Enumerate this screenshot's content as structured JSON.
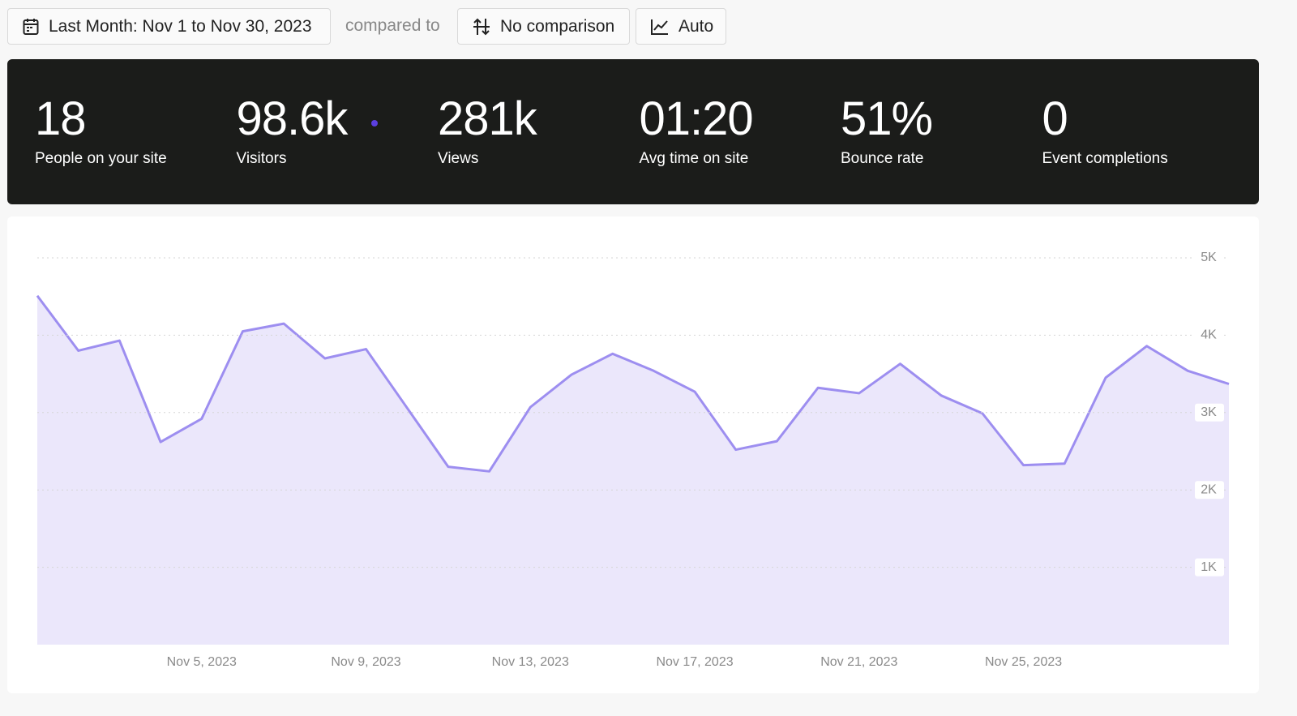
{
  "toolbar": {
    "date_range": "Last Month: Nov 1 to Nov 30, 2023",
    "compared_to": "compared to",
    "comparison": "No comparison",
    "interval": "Auto"
  },
  "stats": [
    {
      "value": "18",
      "label": "People on your site"
    },
    {
      "value": "98.6k",
      "label": "Visitors"
    },
    {
      "value": "281k",
      "label": "Views"
    },
    {
      "value": "01:20",
      "label": "Avg time on site"
    },
    {
      "value": "51%",
      "label": "Bounce rate"
    },
    {
      "value": "0",
      "label": "Event completions"
    }
  ],
  "chart_data": {
    "type": "area",
    "categories": [
      null,
      null,
      null,
      null,
      "Nov 5, 2023",
      null,
      null,
      null,
      "Nov 9, 2023",
      null,
      null,
      null,
      "Nov 13, 2023",
      null,
      null,
      null,
      "Nov 17, 2023",
      null,
      null,
      null,
      "Nov 21, 2023",
      null,
      null,
      null,
      "Nov 25, 2023",
      null,
      null,
      null,
      null,
      null
    ],
    "values": [
      4510,
      3800,
      3930,
      2620,
      2920,
      4050,
      4150,
      3700,
      3820,
      3060,
      2300,
      2240,
      3070,
      3490,
      3760,
      3540,
      3270,
      2520,
      2630,
      3320,
      3250,
      3630,
      3220,
      2990,
      2320,
      2340,
      3450,
      3860,
      3540,
      3370
    ],
    "color": "#9d8ef0",
    "fill_color": "#ebe7fb",
    "ylim": [
      0,
      5000
    ],
    "yticks": [
      {
        "value": 1000,
        "label": "1K"
      },
      {
        "value": 2000,
        "label": "2K"
      },
      {
        "value": 3000,
        "label": "3K"
      },
      {
        "value": 4000,
        "label": "4K"
      },
      {
        "value": 5000,
        "label": "5K"
      }
    ],
    "grid": true
  }
}
